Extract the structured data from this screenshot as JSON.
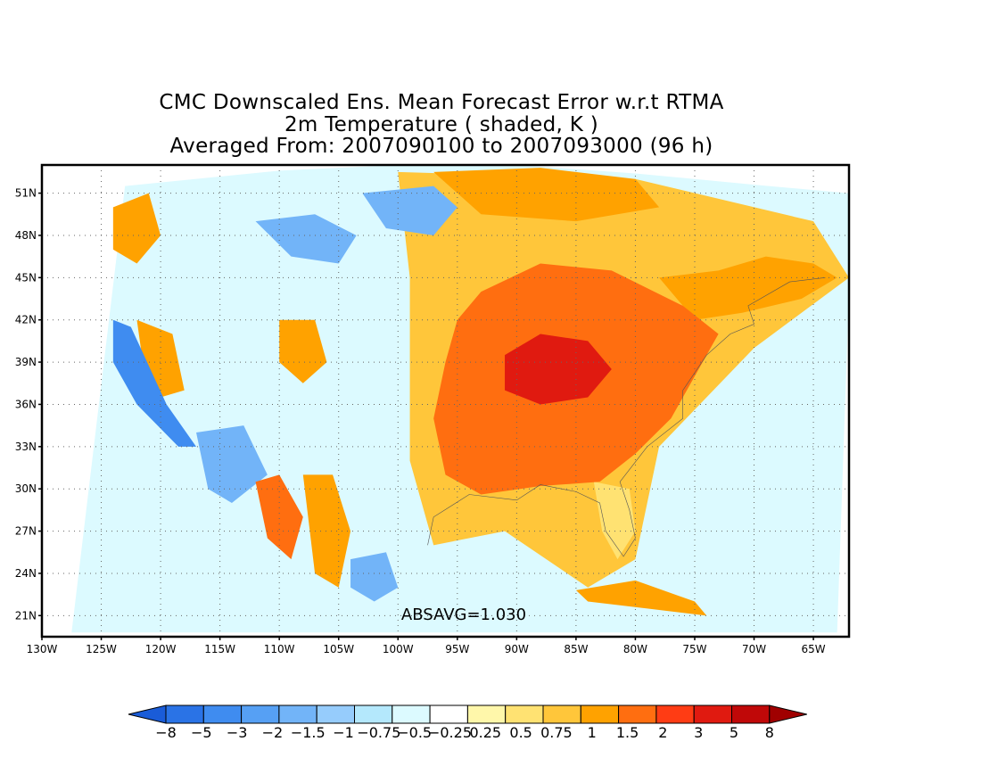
{
  "title": {
    "line1": "CMC Downscaled Ens. Mean Forecast Error w.r.t RTMA",
    "line2": "2m Temperature ( shaded, K )",
    "line3": "Averaged From: 2007090100 to 2007093000 (96 h)"
  },
  "map": {
    "projection": "lat-lon",
    "lon_range": [
      -130,
      -62
    ],
    "lat_range": [
      19.5,
      53
    ],
    "grid": "dotted",
    "lon_ticks": [
      {
        "lon": -130,
        "label": "130W"
      },
      {
        "lon": -125,
        "label": "125W"
      },
      {
        "lon": -120,
        "label": "120W"
      },
      {
        "lon": -115,
        "label": "115W"
      },
      {
        "lon": -110,
        "label": "110W"
      },
      {
        "lon": -105,
        "label": "105W"
      },
      {
        "lon": -100,
        "label": "100W"
      },
      {
        "lon": -95,
        "label": "95W"
      },
      {
        "lon": -90,
        "label": "90W"
      },
      {
        "lon": -85,
        "label": "85W"
      },
      {
        "lon": -80,
        "label": "80W"
      },
      {
        "lon": -75,
        "label": "75W"
      },
      {
        "lon": -70,
        "label": "70W"
      },
      {
        "lon": -65,
        "label": "65W"
      }
    ],
    "lat_ticks": [
      {
        "lat": 51,
        "label": "51N"
      },
      {
        "lat": 48,
        "label": "48N"
      },
      {
        "lat": 45,
        "label": "45N"
      },
      {
        "lat": 42,
        "label": "42N"
      },
      {
        "lat": 39,
        "label": "39N"
      },
      {
        "lat": 36,
        "label": "36N"
      },
      {
        "lat": 33,
        "label": "33N"
      },
      {
        "lat": 30,
        "label": "30N"
      },
      {
        "lat": 27,
        "label": "27N"
      },
      {
        "lat": 24,
        "label": "24N"
      },
      {
        "lat": 21,
        "label": "21N"
      }
    ],
    "absavg_label": "ABSAVG=1.030",
    "regions": [
      {
        "name": "eastern-us-warm-core",
        "level": 3,
        "points": [
          [
            -93,
            44
          ],
          [
            -88,
            46
          ],
          [
            -82,
            45.5
          ],
          [
            -76,
            43
          ],
          [
            -73,
            41
          ],
          [
            -75,
            38
          ],
          [
            -77,
            35
          ],
          [
            -80,
            32.5
          ],
          [
            -83,
            30.5
          ],
          [
            -88,
            30.2
          ],
          [
            -93,
            29.6
          ],
          [
            -96,
            31
          ],
          [
            -97,
            35
          ],
          [
            -96,
            39
          ],
          [
            -95,
            42
          ]
        ]
      },
      {
        "name": "ohio-valley-hot",
        "level": 5,
        "points": [
          [
            -91,
            39.5
          ],
          [
            -88,
            41
          ],
          [
            -84,
            40.5
          ],
          [
            -82,
            38.5
          ],
          [
            -84,
            36.5
          ],
          [
            -88,
            36
          ],
          [
            -91,
            37
          ]
        ]
      },
      {
        "name": "northeast-warm-arm",
        "level": 2,
        "points": [
          [
            -78,
            45
          ],
          [
            -73,
            45.5
          ],
          [
            -69,
            46.5
          ],
          [
            -65,
            46
          ],
          [
            -63,
            45
          ],
          [
            -66,
            43.5
          ],
          [
            -71,
            42.5
          ],
          [
            -75,
            42
          ]
        ]
      },
      {
        "name": "southwest-ridge-1",
        "level": 3,
        "points": [
          [
            -112,
            30.5
          ],
          [
            -110,
            31
          ],
          [
            -108,
            28
          ],
          [
            -109,
            25
          ],
          [
            -111,
            26.5
          ]
        ]
      },
      {
        "name": "southwest-ridge-2",
        "level": 2,
        "points": [
          [
            -108,
            31
          ],
          [
            -105.5,
            31
          ],
          [
            -104,
            27
          ],
          [
            -105,
            23
          ],
          [
            -107,
            24
          ]
        ]
      },
      {
        "name": "northwest-warm",
        "level": 2,
        "points": [
          [
            -124,
            50
          ],
          [
            -121,
            51
          ],
          [
            -120,
            48
          ],
          [
            -122,
            46
          ],
          [
            -124,
            47
          ]
        ]
      },
      {
        "name": "sierra-warm",
        "level": 2,
        "points": [
          [
            -122,
            42
          ],
          [
            -119,
            41
          ],
          [
            -118,
            37
          ],
          [
            -120,
            36.5
          ],
          [
            -121.5,
            39
          ]
        ]
      },
      {
        "name": "colorado-plateau-warm",
        "level": 2,
        "points": [
          [
            -110,
            42
          ],
          [
            -107,
            42
          ],
          [
            -106,
            39
          ],
          [
            -108,
            37.5
          ],
          [
            -110,
            39
          ]
        ]
      },
      {
        "name": "california-coast-cool",
        "level": -3,
        "points": [
          [
            -124,
            42
          ],
          [
            -122.5,
            41.5
          ],
          [
            -119.5,
            36
          ],
          [
            -117,
            33
          ],
          [
            -118.5,
            33
          ],
          [
            -122,
            36
          ],
          [
            -124,
            39
          ]
        ]
      },
      {
        "name": "rockies-cool-1",
        "level": -2,
        "points": [
          [
            -117,
            34
          ],
          [
            -113,
            34.5
          ],
          [
            -111,
            31
          ],
          [
            -114,
            29
          ],
          [
            -116,
            30
          ]
        ]
      },
      {
        "name": "rockies-cool-2",
        "level": -2,
        "points": [
          [
            -112,
            49
          ],
          [
            -107,
            49.5
          ],
          [
            -103.5,
            48
          ],
          [
            -105,
            46
          ],
          [
            -109,
            46.5
          ]
        ]
      },
      {
        "name": "north-plains-cool",
        "level": -2,
        "points": [
          [
            -103,
            51
          ],
          [
            -97,
            51.5
          ],
          [
            -95,
            50
          ],
          [
            -97,
            48
          ],
          [
            -101,
            48.5
          ]
        ]
      },
      {
        "name": "mexico-cool",
        "level": -2,
        "points": [
          [
            -104,
            25
          ],
          [
            -101,
            25.5
          ],
          [
            -100,
            23
          ],
          [
            -102,
            22
          ],
          [
            -104,
            23
          ]
        ]
      },
      {
        "name": "cuba-warm",
        "level": 2,
        "points": [
          [
            -85,
            22.8
          ],
          [
            -80,
            23.5
          ],
          [
            -75,
            22
          ],
          [
            -74,
            21
          ],
          [
            -79,
            21.5
          ],
          [
            -84,
            22
          ]
        ]
      },
      {
        "name": "canada-north-warm",
        "level": 2,
        "points": [
          [
            -97,
            52.5
          ],
          [
            -88,
            52.8
          ],
          [
            -80,
            52
          ],
          [
            -78,
            50
          ],
          [
            -85,
            49
          ],
          [
            -93,
            49.5
          ]
        ]
      },
      {
        "name": "florida-warm",
        "level": 1,
        "points": [
          [
            -83.5,
            30.5
          ],
          [
            -80.5,
            30
          ],
          [
            -80,
            27
          ],
          [
            -81.5,
            25
          ],
          [
            -82.8,
            27
          ]
        ]
      }
    ]
  },
  "colorbar": {
    "labels": [
      "-8",
      "-5",
      "-3",
      "-2",
      "-1.5",
      "-1",
      "-0.75",
      "-0.5",
      "-0.25",
      "0.25",
      "0.5",
      "0.75",
      "1",
      "1.5",
      "2",
      "3",
      "5",
      "8"
    ],
    "colors": [
      "#1a5cd8",
      "#2a73e6",
      "#3f8cf0",
      "#56a0f4",
      "#72b4f8",
      "#96ccfc",
      "#b4e8fc",
      "#dcfaff",
      "#ffffff",
      "#fff7aa",
      "#ffe272",
      "#ffc63a",
      "#ffa200",
      "#ff6e10",
      "#ff3c14",
      "#e01a10",
      "#c00808",
      "#a00000"
    ]
  }
}
